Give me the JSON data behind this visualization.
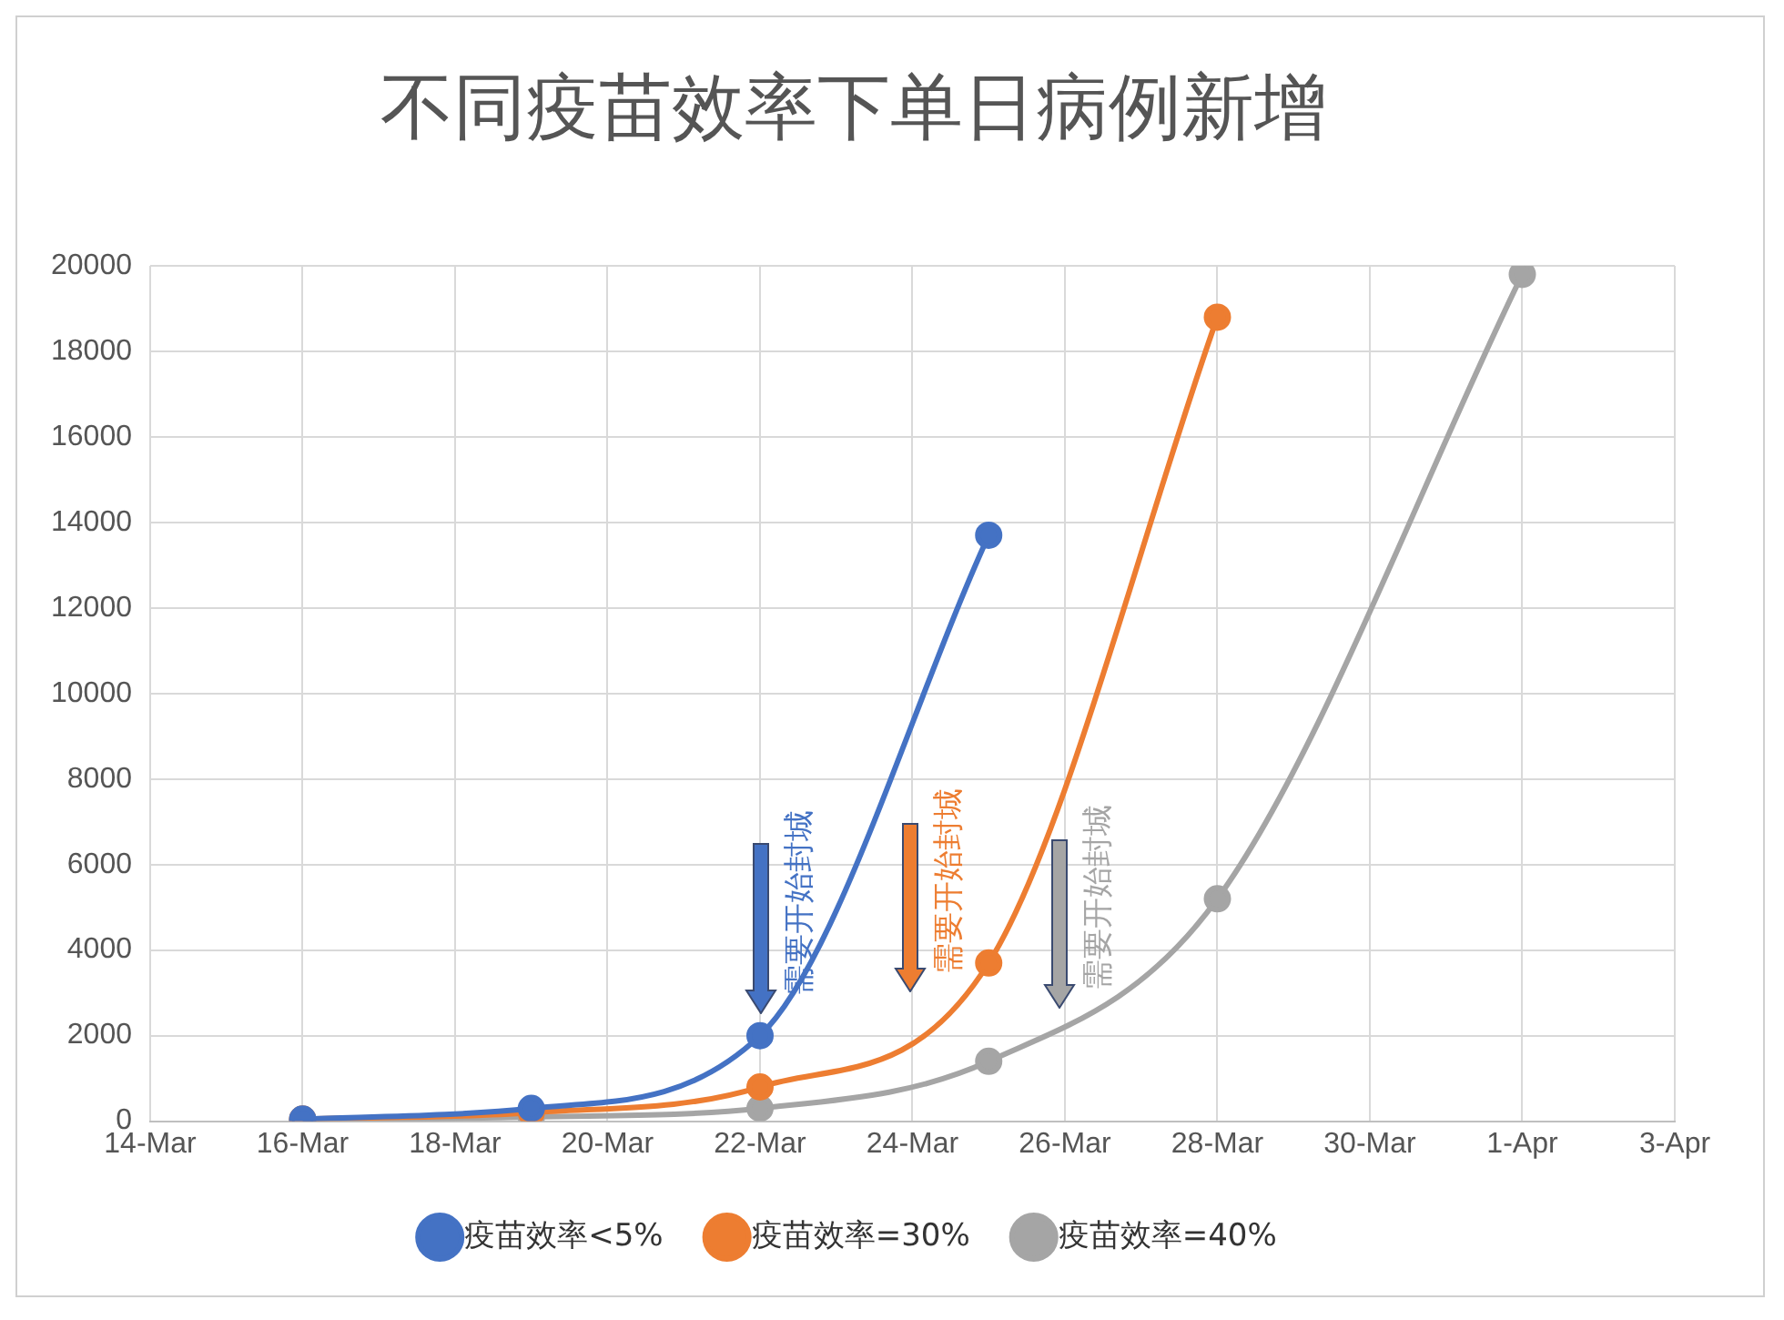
{
  "chart_data": {
    "type": "line",
    "title": "不同疫苗效率下单日病例新增",
    "x": [
      "--03-16",
      "--03-19",
      "--03-22",
      "--03-25",
      "--03-28",
      "--04-01"
    ],
    "series": [
      {
        "name": "疫苗效率<5%",
        "color": "#4472c4",
        "values": [
          50,
          300,
          2000,
          13700,
          null,
          null
        ]
      },
      {
        "name": "疫苗效率=30%",
        "color": "#ed7d31",
        "values": [
          50,
          200,
          800,
          3700,
          18800,
          null
        ]
      },
      {
        "name": "疫苗效率=40%",
        "color": "#a5a5a5",
        "values": [
          30,
          100,
          300,
          1400,
          5200,
          19800
        ]
      }
    ],
    "xlim": [
      "--03-14",
      "--04-03"
    ],
    "xticks": [
      {
        "value": "--03-14",
        "label": "14-Mar"
      },
      {
        "value": "--03-16",
        "label": "16-Mar"
      },
      {
        "value": "--03-18",
        "label": "18-Mar"
      },
      {
        "value": "--03-20",
        "label": "20-Mar"
      },
      {
        "value": "--03-22",
        "label": "22-Mar"
      },
      {
        "value": "--03-24",
        "label": "24-Mar"
      },
      {
        "value": "--03-26",
        "label": "26-Mar"
      },
      {
        "value": "--03-28",
        "label": "28-Mar"
      },
      {
        "value": "--03-30",
        "label": "30-Mar"
      },
      {
        "value": "--04-01",
        "label": "1-Apr"
      },
      {
        "value": "--04-03",
        "label": "3-Apr"
      }
    ],
    "ylim": [
      0,
      20000
    ],
    "yticks": [
      0,
      2000,
      4000,
      6000,
      8000,
      10000,
      12000,
      14000,
      16000,
      18000,
      20000
    ],
    "grid": true,
    "legend": "bottom",
    "marker": "circle",
    "line_style": "solid",
    "annotations": [
      "需要开始封城",
      "需要开始封城",
      "需要开始封城"
    ]
  }
}
